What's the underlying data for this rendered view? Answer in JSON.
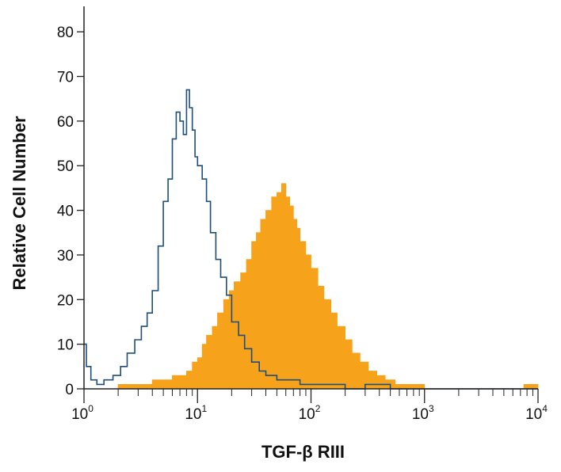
{
  "chart_data": {
    "type": "area",
    "title": "",
    "xlabel": "TGF-β RIII",
    "ylabel": "Relative Cell Number",
    "x_scale": "log",
    "xlim": [
      1,
      10000
    ],
    "ylim": [
      0,
      85
    ],
    "y_ticks": [
      0,
      10,
      20,
      30,
      40,
      50,
      60,
      70,
      80
    ],
    "x_ticks": [
      {
        "value": 1,
        "base": "10",
        "exp": "0"
      },
      {
        "value": 10,
        "base": "10",
        "exp": "1"
      },
      {
        "value": 100,
        "base": "10",
        "exp": "2"
      },
      {
        "value": 1000,
        "base": "10",
        "exp": "3"
      },
      {
        "value": 10000,
        "base": "10",
        "exp": "4"
      }
    ],
    "grid": false,
    "series": [
      {
        "style": "outline",
        "color": "#1f4e79",
        "x": [
          1.0,
          1.05,
          1.15,
          1.3,
          1.5,
          1.8,
          2.1,
          2.4,
          2.8,
          3.2,
          3.6,
          4.0,
          4.5,
          5.0,
          5.5,
          6.0,
          6.5,
          7.0,
          7.5,
          8.0,
          8.5,
          9.0,
          9.5,
          10.0,
          11.0,
          12.0,
          13.0,
          14.5,
          16.0,
          18.0,
          20.0,
          23.0,
          26.0,
          30.0,
          35.0,
          40.0,
          50.0,
          60.0,
          80.0,
          100.0,
          150.0,
          200.0,
          300.0,
          500.0,
          1000.0,
          3000.0,
          10000.0
        ],
        "y": [
          10,
          5,
          2,
          1,
          2,
          3,
          5,
          8,
          11,
          14,
          17,
          22,
          32,
          42,
          47,
          56,
          62,
          60,
          57,
          67,
          63,
          58,
          52,
          50,
          47,
          42,
          35,
          29,
          25,
          21,
          15,
          12,
          9,
          6,
          4,
          3,
          2,
          2,
          1,
          1,
          1,
          0,
          1,
          0,
          0,
          0,
          0
        ]
      },
      {
        "style": "filled",
        "color": "#f7a21b",
        "x": [
          1.0,
          1.5,
          2.0,
          3.0,
          4.0,
          5.0,
          6.0,
          7.0,
          8.0,
          9.0,
          10.0,
          11.0,
          12.0,
          13.5,
          15.0,
          17.0,
          19.0,
          21.0,
          24.0,
          27.0,
          30.0,
          33.0,
          36.0,
          40.0,
          45.0,
          50.0,
          55.0,
          60.0,
          65.0,
          70.0,
          75.0,
          80.0,
          90.0,
          100.0,
          115.0,
          130.0,
          150.0,
          170.0,
          200.0,
          230.0,
          270.0,
          320.0,
          380.0,
          450.0,
          550.0,
          700.0,
          1000.0,
          2000.0,
          5000.0,
          7500.0,
          10000.0
        ],
        "y": [
          0,
          0,
          1,
          1,
          2,
          2,
          3,
          3,
          4,
          6,
          7,
          10,
          12,
          14,
          17,
          20,
          22,
          24,
          26,
          29,
          33,
          35,
          38,
          40,
          43,
          44,
          46,
          43,
          41,
          38,
          36,
          33,
          30,
          27,
          23,
          20,
          17,
          14,
          11,
          8,
          6,
          4,
          3,
          2,
          1,
          1,
          0,
          0,
          0,
          1,
          0
        ]
      }
    ]
  }
}
